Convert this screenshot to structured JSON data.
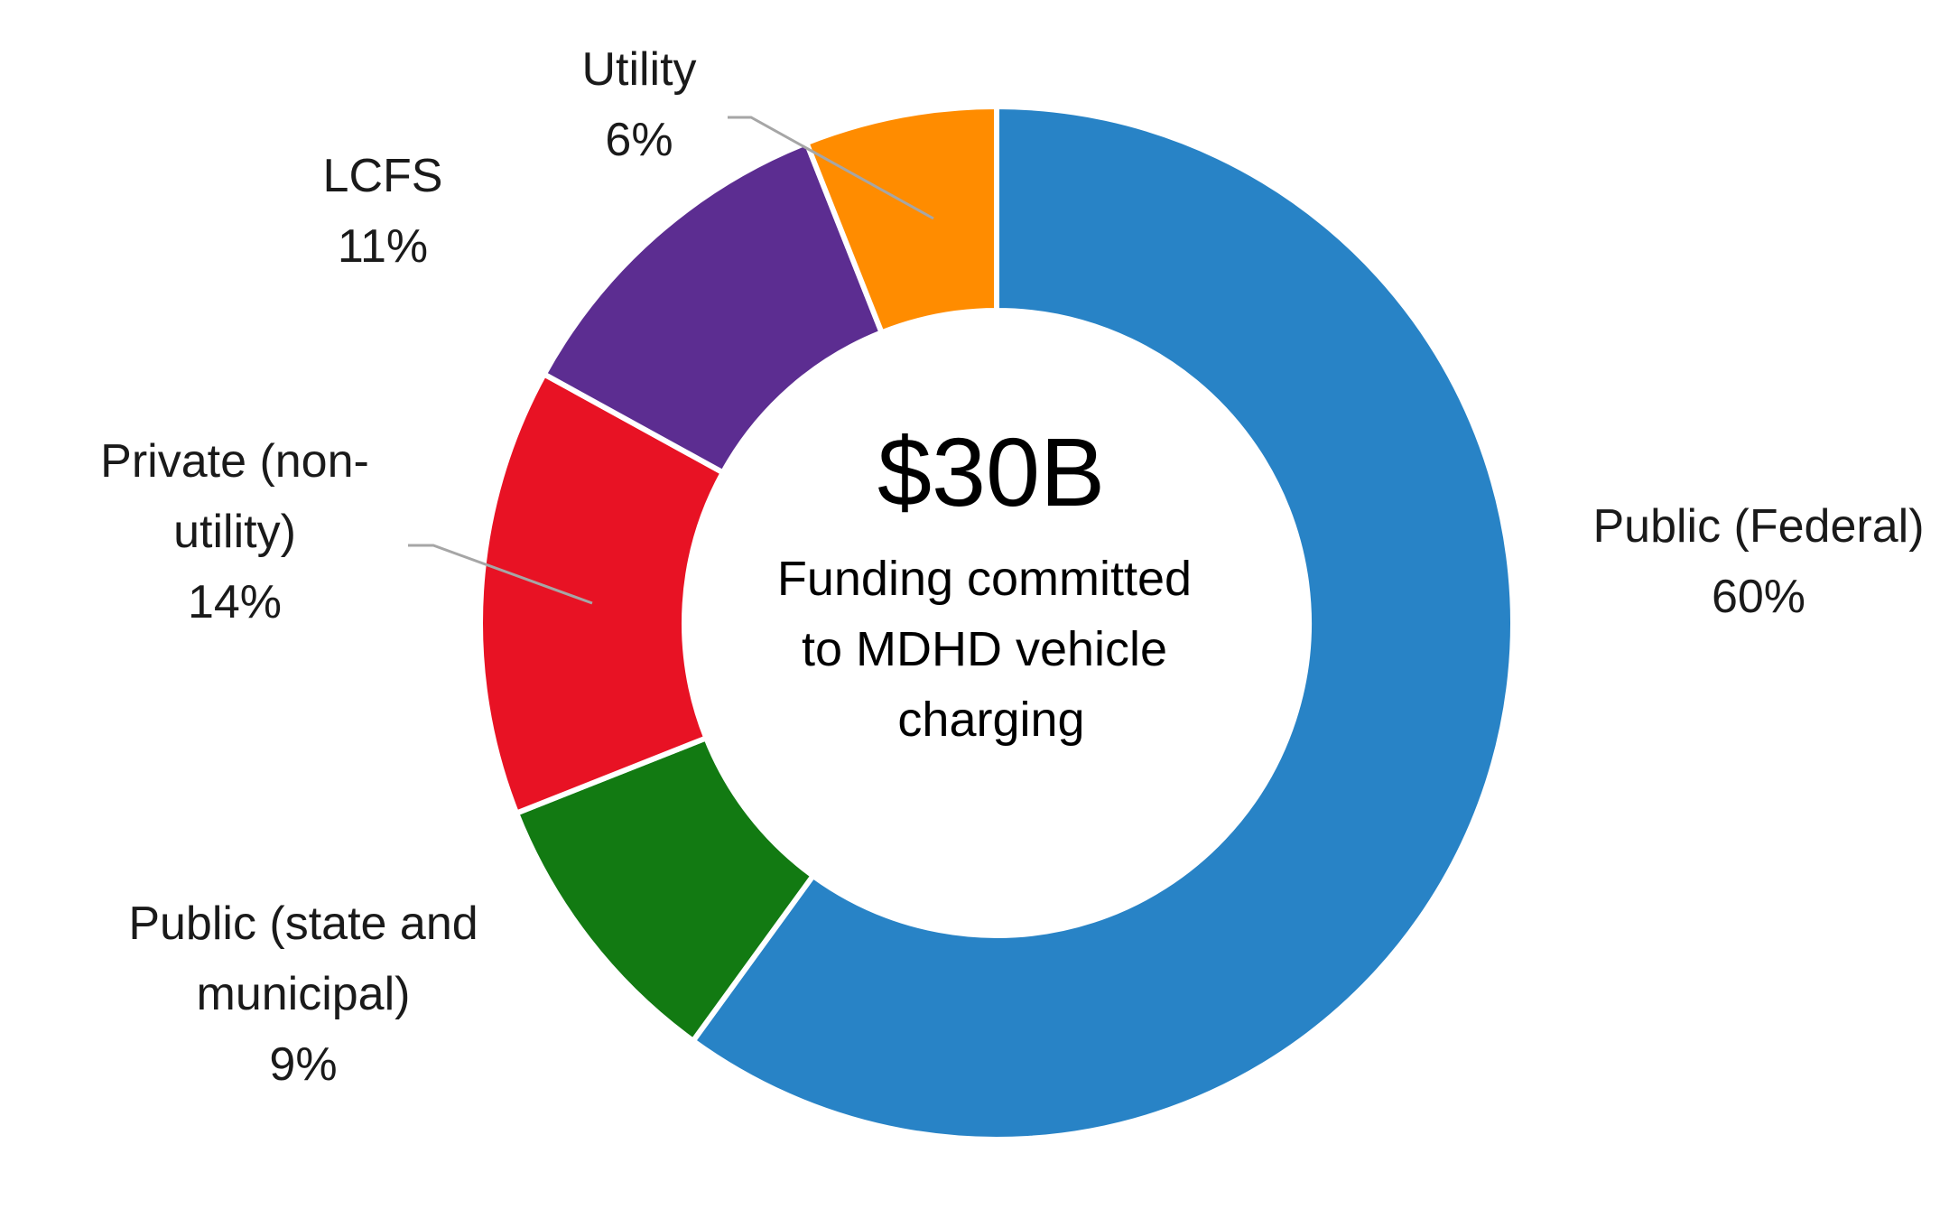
{
  "chart_data": {
    "type": "pie",
    "variant": "donut",
    "center_total": "$30B",
    "center_caption": [
      "Funding committed",
      "to MDHD vehicle",
      "charging"
    ],
    "slices": [
      {
        "name": "Public (Federal)",
        "label_lines": [
          "Public (Federal)"
        ],
        "value": 60,
        "value_label": "60%",
        "color": "#2883C6"
      },
      {
        "name": "Public (state and municipal)",
        "label_lines": [
          "Public (state and",
          "municipal)"
        ],
        "value": 9,
        "value_label": "9%",
        "color": "#127A12"
      },
      {
        "name": "Private (non-utility)",
        "label_lines": [
          "Private (non-",
          "utility)"
        ],
        "value": 14,
        "value_label": "14%",
        "color": "#E81224"
      },
      {
        "name": "LCFS",
        "label_lines": [
          "LCFS"
        ],
        "value": 11,
        "value_label": "11%",
        "color": "#5C2D91"
      },
      {
        "name": "Utility",
        "label_lines": [
          "Utility"
        ],
        "value": 6,
        "value_label": "6%",
        "color": "#FF8C00"
      }
    ],
    "legend": "none",
    "data_labels": "outside"
  }
}
